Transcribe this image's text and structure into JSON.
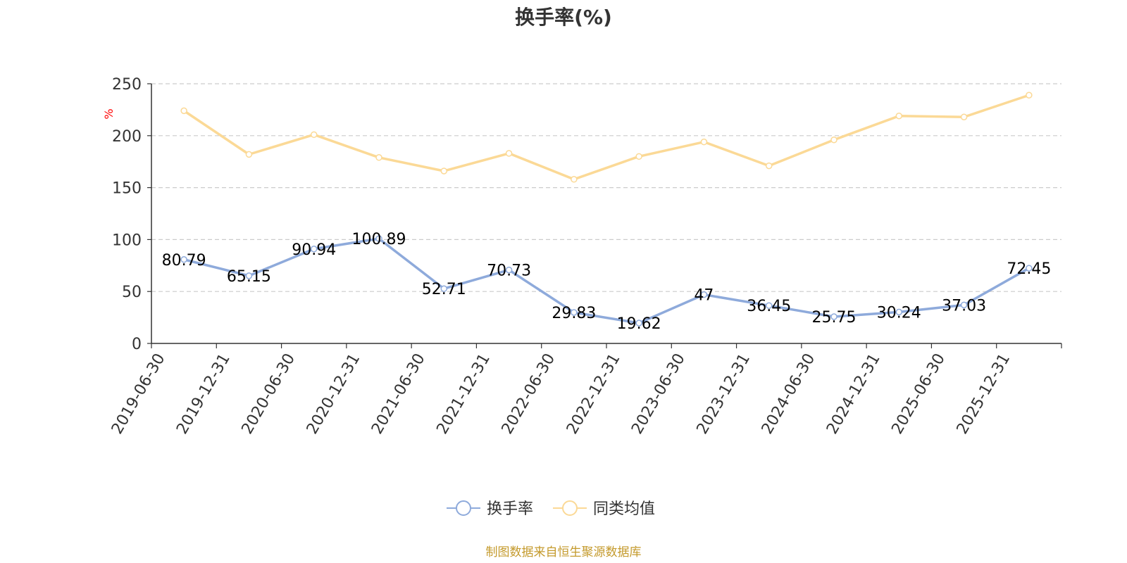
{
  "chart_data": {
    "type": "line",
    "title": "换手率(%)",
    "ylabel": "%",
    "ylim": [
      0,
      250
    ],
    "yticks": [
      0,
      50,
      100,
      150,
      200,
      250
    ],
    "grid": true,
    "legend_position": "bottom-center",
    "categories": [
      "2019-06-30",
      "2019-12-31",
      "2020-06-30",
      "2020-12-31",
      "2021-06-30",
      "2021-12-31",
      "2022-06-30",
      "2022-12-31",
      "2023-06-30",
      "2023-12-31",
      "2024-06-30",
      "2024-12-31",
      "2025-06-30",
      "2025-12-31"
    ],
    "series": [
      {
        "name": "换手率",
        "color": "#8eaadb",
        "values": [
          80.79,
          65.15,
          90.94,
          100.89,
          52.71,
          70.73,
          29.83,
          19.62,
          47,
          36.45,
          25.75,
          30.24,
          37.03,
          72.45
        ],
        "labels": [
          "80.79",
          "65.15",
          "90.94",
          "100.89",
          "52.71",
          "70.73",
          "29.83",
          "19.62",
          "47",
          "36.45",
          "25.75",
          "30.24",
          "37.03",
          "72.45"
        ]
      },
      {
        "name": "同类均值",
        "color": "#fbd996",
        "values": [
          224,
          182,
          201,
          179,
          166,
          183,
          158,
          180,
          194,
          171,
          196,
          219,
          218,
          239
        ]
      }
    ],
    "source": "制图数据来自恒生聚源数据库",
    "colors": {
      "axis": "#333333",
      "grid": "#cccccc",
      "unit": "#ff0000",
      "source": "#c49a2c"
    }
  }
}
